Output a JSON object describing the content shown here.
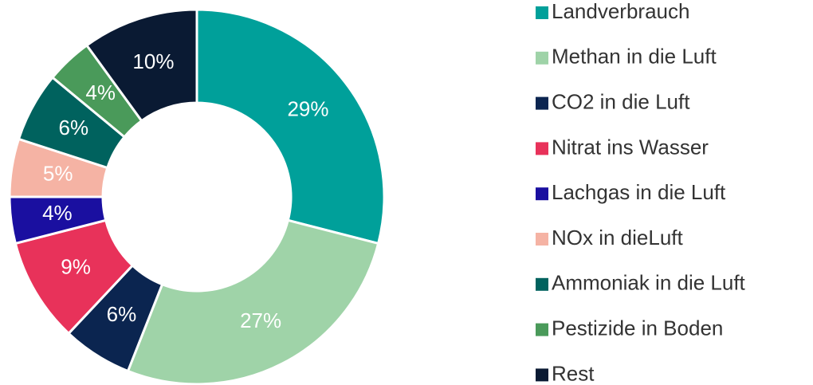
{
  "chart_data": {
    "type": "donut",
    "categories": [
      "Landverbrauch",
      "Methan in die Luft",
      "CO2 in die Luft",
      "Nitrat ins Wasser",
      "Lachgas in die Luft",
      "NOx in dieLuft",
      "Ammoniak in die Luft",
      "Pestizide in Boden",
      "Rest"
    ],
    "values": [
      29,
      27,
      6,
      9,
      4,
      5,
      6,
      4,
      10
    ],
    "value_labels": [
      "29%",
      "27%",
      "6%",
      "9%",
      "4%",
      "5%",
      "6%",
      "4%",
      "10%"
    ],
    "colors": [
      "#00a09a",
      "#9fd3a8",
      "#0b2550",
      "#e8325a",
      "#1a0fa0",
      "#f5b3a4",
      "#00625e",
      "#4a9a5a",
      "#0a1a33"
    ],
    "legend": "right"
  }
}
